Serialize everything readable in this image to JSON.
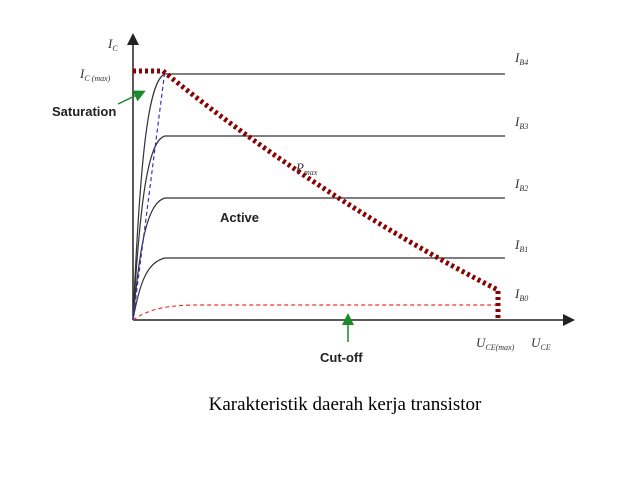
{
  "axis_labels": {
    "ic": {
      "main": "I",
      "sub": "C"
    },
    "ic_max": {
      "main": "I",
      "sub": "C (max)"
    },
    "uce_max": {
      "main": "U",
      "sub": "CE(max)"
    },
    "uce": {
      "main": "U",
      "sub": "CE"
    }
  },
  "curve_labels": [
    {
      "main": "I",
      "sub": "B4"
    },
    {
      "main": "I",
      "sub": "B3"
    },
    {
      "main": "I",
      "sub": "B2"
    },
    {
      "main": "I",
      "sub": "B1"
    },
    {
      "main": "I",
      "sub": "B0"
    }
  ],
  "regions": {
    "saturation": "Saturation",
    "active": "Active",
    "cutoff": "Cut-off"
  },
  "pmax": {
    "main": "P",
    "sub": "max"
  },
  "caption": "Karakteristik daerah kerja transistor"
}
